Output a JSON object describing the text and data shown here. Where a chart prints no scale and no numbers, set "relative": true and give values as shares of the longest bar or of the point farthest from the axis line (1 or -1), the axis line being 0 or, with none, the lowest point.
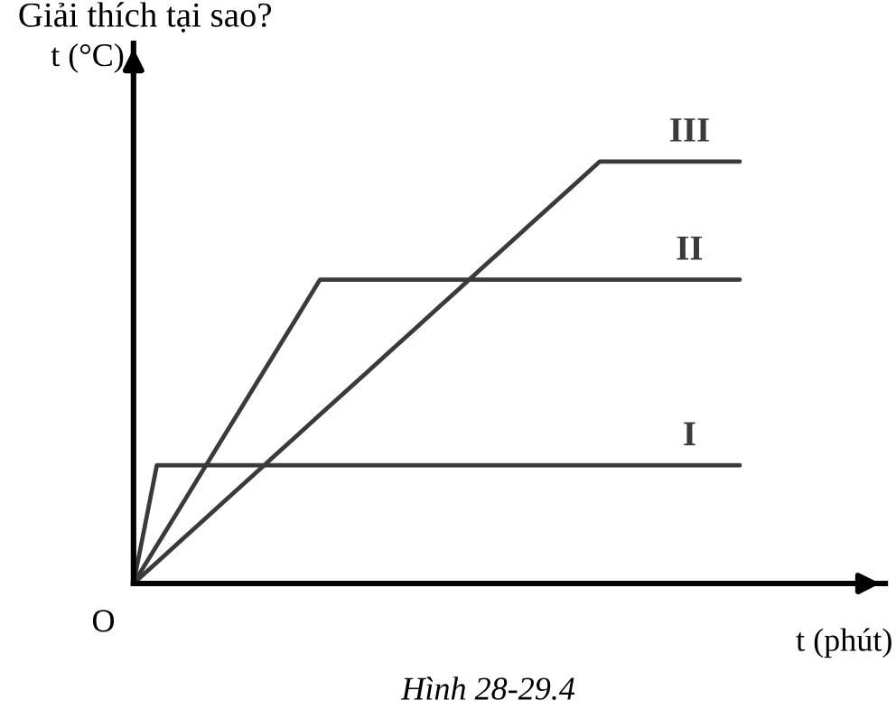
{
  "chart_data": {
    "type": "line",
    "relative": true,
    "title": "Giải thích tại sao?",
    "xlabel": "t (phút)",
    "ylabel": "t (°C)",
    "annotations": [
      "O",
      "Hình 28-29.4"
    ],
    "line_style": "solid",
    "categories": [
      null,
      null,
      null,
      null,
      null,
      null,
      null,
      null,
      null,
      null,
      null,
      null,
      null,
      null,
      null,
      null,
      null,
      null,
      null,
      null,
      null,
      null,
      null,
      null,
      null,
      null,
      null
    ],
    "series": [
      {
        "name": "I",
        "color": "#3a3a3a",
        "values": [
          0,
          0.28,
          0.28,
          0.28,
          0.28,
          0.28,
          0.28,
          0.28,
          0.28,
          0.28,
          0.28,
          0.28,
          0.28,
          0.28,
          0.28,
          0.28,
          0.28,
          0.28,
          0.28,
          0.28,
          0.28,
          0.28,
          0.28,
          0.28,
          0.28,
          0.28,
          0.28
        ]
      },
      {
        "name": "II",
        "color": "#3a3a3a",
        "values": [
          0,
          0.09,
          0.18,
          0.27,
          0.36,
          0.45,
          0.54,
          0.63,
          0.72,
          0.72,
          0.72,
          0.72,
          0.72,
          0.72,
          0.72,
          0.72,
          0.72,
          0.72,
          0.72,
          0.72,
          0.72,
          0.72,
          0.72,
          0.72,
          0.72,
          0.72,
          0.72
        ]
      },
      {
        "name": "III",
        "color": "#3a3a3a",
        "values": [
          0,
          0.05,
          0.1,
          0.15,
          0.2,
          0.25,
          0.3,
          0.35,
          0.4,
          0.45,
          0.5,
          0.55,
          0.6,
          0.65,
          0.7,
          0.75,
          0.8,
          0.85,
          0.9,
          0.95,
          1,
          1,
          1,
          1,
          1,
          1,
          1
        ]
      }
    ]
  }
}
